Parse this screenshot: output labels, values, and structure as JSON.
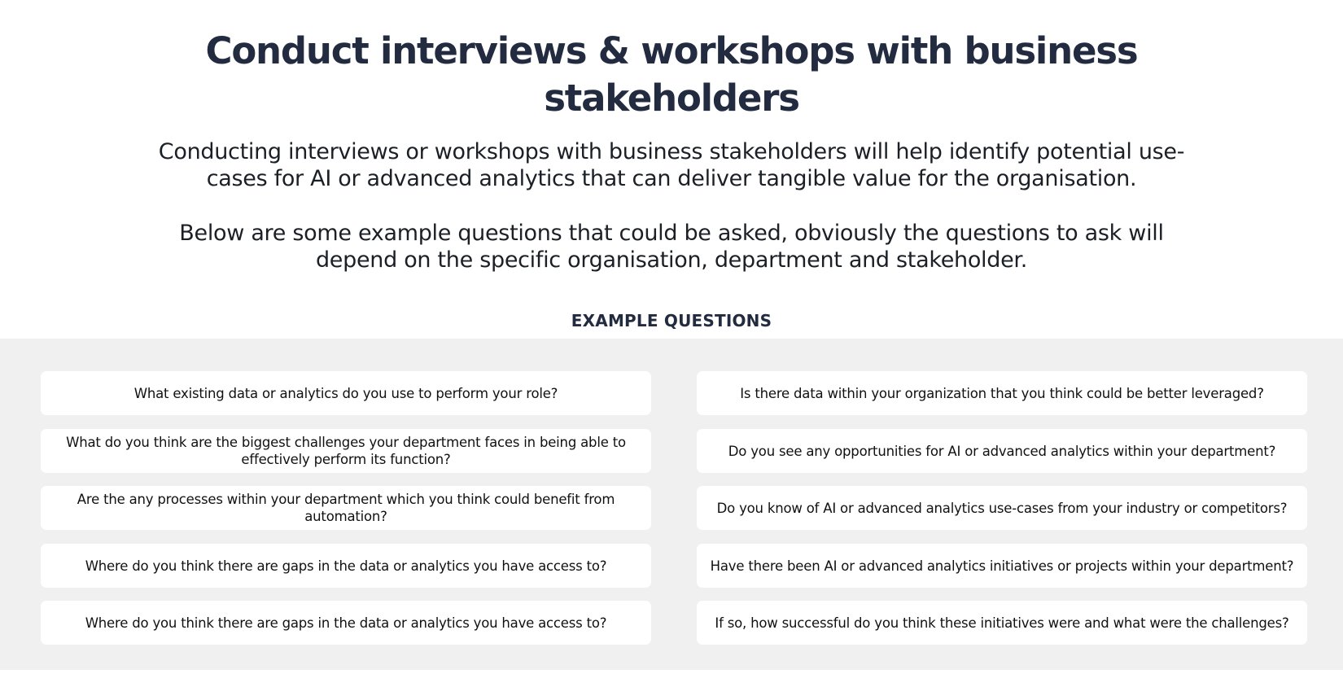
{
  "header": {
    "title": "Conduct interviews & workshops with business stakeholders",
    "intro_paragraphs": [
      "Conducting interviews or workshops with business stakeholders will help identify potential use-cases for AI or advanced analytics that can deliver tangible value for the organisation.",
      "Below are some example questions that could be asked, obviously the questions to ask will depend on the specific organisation, department and stakeholder."
    ]
  },
  "questions": {
    "section_label": "EXAMPLE QUESTIONS",
    "left_column": [
      "What existing data or analytics do you use to perform your role?",
      "What do you think are the biggest challenges your department faces in being able to effectively perform its function?",
      "Are the any processes within your department which you think could benefit from automation?",
      "Where do you think there are gaps in the data or analytics you have access to?",
      "Where do you think there are gaps in the data or analytics you have access to?"
    ],
    "right_column": [
      "Is there data within your organization that you think could be better leveraged?",
      "Do you see any opportunities for AI or advanced analytics within your department?",
      "Do you know of AI or advanced analytics use-cases from your industry or competitors?",
      "Have there been AI or advanced analytics initiatives or projects within your department?",
      "If so, how successful do you think these initiatives were and what were the challenges?"
    ]
  },
  "colors": {
    "title": "#222b40",
    "body_text": "#1b1f26",
    "panel_background": "#f0f0f0",
    "card_background": "#ffffff"
  }
}
